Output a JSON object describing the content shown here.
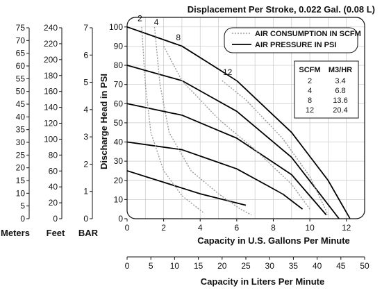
{
  "title": "Displacement Per Stroke, 0.022 Gal. (0.08 L)",
  "chart_data": {
    "type": "line",
    "title": "Displacement Per Stroke, 0.022 Gal. (0.08 L)",
    "xlabel": "Capacity in U.S. Gallons Per Minute",
    "ylabel": "Discharge Head in PSI",
    "x2label": "Capacity in Liters Per Minute",
    "xlim": [
      0,
      13
    ],
    "ylim": [
      0,
      105
    ],
    "x_ticks": [
      "0",
      "2",
      "4",
      "6",
      "8",
      "10",
      "12"
    ],
    "y_ticks": [
      "0",
      "10",
      "20",
      "30",
      "40",
      "50",
      "60",
      "70",
      "80",
      "90",
      "100"
    ],
    "x2_ticks": [
      "0",
      "5",
      "10",
      "15",
      "20",
      "25",
      "30",
      "35",
      "40",
      "45",
      "50"
    ],
    "grid": true,
    "legend": {
      "position": "top-right",
      "items": [
        {
          "label": "AIR CONSUMPTION IN SCFM",
          "style": "dotted",
          "color": "#999999"
        },
        {
          "label": "AIR PRESSURE IN PSI",
          "style": "solid",
          "color": "#000000"
        }
      ]
    },
    "scfm_table": {
      "headers": [
        "SCFM",
        "M3/HR"
      ],
      "rows": [
        [
          "2",
          "3.4"
        ],
        [
          "4",
          "6.8"
        ],
        [
          "8",
          "13.6"
        ],
        [
          "12",
          "20.4"
        ]
      ]
    },
    "series": [
      {
        "label": "",
        "style": "solid",
        "x": [
          0,
          3,
          6,
          9,
          11,
          12.2
        ],
        "y": [
          100,
          90,
          72,
          45,
          20,
          0
        ]
      },
      {
        "label": "",
        "style": "solid",
        "x": [
          0,
          3,
          6,
          9,
          11.6
        ],
        "y": [
          80,
          72,
          56,
          32,
          0
        ]
      },
      {
        "label": "",
        "style": "solid",
        "x": [
          0,
          3,
          6,
          9,
          10.9
        ],
        "y": [
          60,
          54,
          42,
          23,
          2
        ]
      },
      {
        "label": "",
        "style": "solid",
        "x": [
          0,
          3,
          6,
          8.5,
          9.6
        ],
        "y": [
          40,
          36,
          26,
          13,
          5
        ]
      },
      {
        "label": "",
        "style": "solid",
        "x": [
          0,
          2,
          4,
          6.5
        ],
        "y": [
          25,
          19,
          13,
          7
        ]
      },
      {
        "label": "2",
        "style": "dotted",
        "x": [
          0.8,
          1.0,
          1.3,
          2.0,
          3.0,
          4.2
        ],
        "y": [
          100,
          70,
          45,
          25,
          12,
          3
        ]
      },
      {
        "label": "4",
        "style": "dotted",
        "x": [
          1.5,
          1.8,
          2.3,
          3.5,
          5.0,
          6.2,
          6.8
        ],
        "y": [
          100,
          70,
          45,
          25,
          13,
          5,
          2
        ]
      },
      {
        "label": "8",
        "style": "dotted",
        "x": [
          2.0,
          3.0,
          5.0,
          7.0,
          9.0,
          10.0
        ],
        "y": [
          90,
          72,
          52,
          36,
          18,
          5
        ]
      },
      {
        "label": "12",
        "style": "dotted",
        "x": [
          5.2,
          6.5,
          8.5,
          10.0,
          11.0
        ],
        "y": [
          72,
          62,
          42,
          22,
          2
        ]
      }
    ],
    "curve_labels": [
      {
        "text": "2",
        "x": 0.7,
        "y": 103
      },
      {
        "text": "4",
        "x": 1.6,
        "y": 101
      },
      {
        "text": "8",
        "x": 2.8,
        "y": 93
      },
      {
        "text": "12",
        "x": 5.5,
        "y": 75
      }
    ]
  },
  "side_scales": [
    {
      "label": "Meters",
      "ticks": [
        "0",
        "5",
        "10",
        "15",
        "20",
        "25",
        "30",
        "35",
        "40",
        "45",
        "50",
        "55",
        "60",
        "65",
        "70",
        "75"
      ]
    },
    {
      "label": "Feet",
      "ticks": [
        "0",
        "20",
        "40",
        "60",
        "80",
        "100",
        "120",
        "140",
        "160",
        "180",
        "200",
        "220",
        "240"
      ]
    },
    {
      "label": "BAR",
      "ticks": [
        "0",
        "1",
        "2",
        "3",
        "4",
        "5",
        "6",
        "7"
      ]
    }
  ]
}
